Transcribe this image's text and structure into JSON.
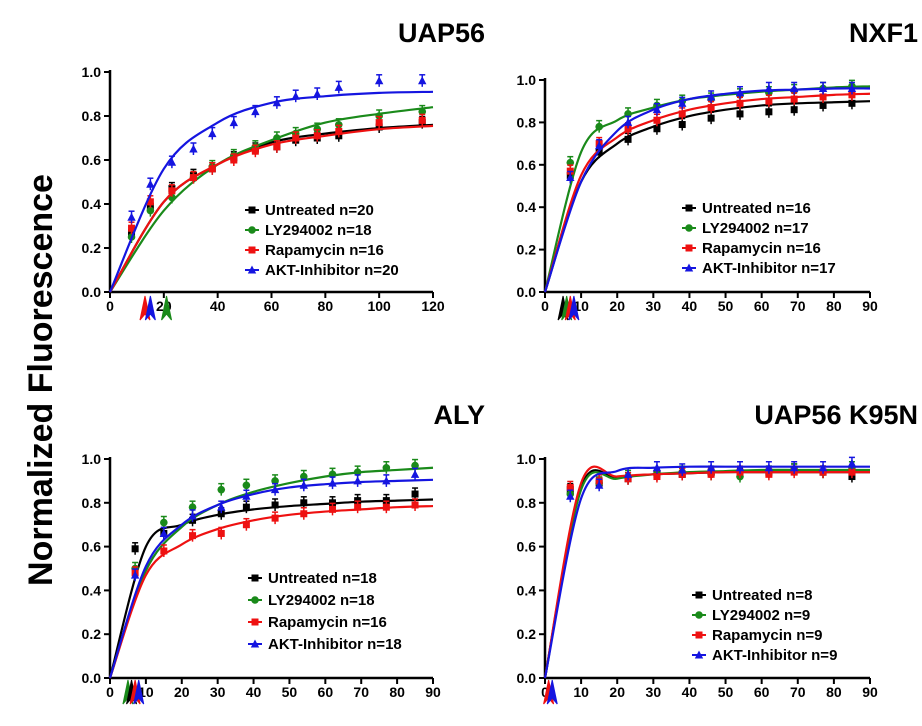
{
  "figure": {
    "ylabel": "Normalized Fluorescence"
  },
  "colors": {
    "Untreated": "#000000",
    "LY294002": "#1a8a1a",
    "Rapamycin": "#ee1111",
    "AKT-Inhibitor": "#1515e0"
  },
  "chart_data": [
    {
      "type": "line",
      "title": "UAP56",
      "xlabel": "",
      "ylabel": "",
      "xlim": [
        0,
        120
      ],
      "ylim": [
        0,
        1.0
      ],
      "xticks": [
        0,
        20,
        40,
        60,
        80,
        100,
        120
      ],
      "yticks": [
        0.0,
        0.2,
        0.4,
        0.6,
        0.8,
        1.0
      ],
      "legend_position": "lower-right",
      "series": [
        {
          "name": "Untreated n=20",
          "key": "Untreated",
          "x": [
            0,
            8,
            15,
            23,
            31,
            38,
            46,
            54,
            62,
            69,
            77,
            85,
            100,
            116
          ],
          "y": [
            0,
            0.27,
            0.39,
            0.47,
            0.53,
            0.56,
            0.61,
            0.65,
            0.66,
            0.69,
            0.7,
            0.71,
            0.75,
            0.77
          ],
          "fit": [
            0,
            0.41,
            0.58,
            0.68,
            0.72,
            0.745,
            0.76
          ]
        },
        {
          "name": "LY294002 n=18",
          "key": "LY294002",
          "x": [
            0,
            8,
            15,
            23,
            31,
            38,
            46,
            54,
            62,
            69,
            77,
            85,
            100,
            116
          ],
          "y": [
            0,
            0.25,
            0.37,
            0.43,
            0.52,
            0.57,
            0.62,
            0.66,
            0.7,
            0.72,
            0.74,
            0.76,
            0.8,
            0.82
          ],
          "fit": [
            0,
            0.37,
            0.58,
            0.69,
            0.77,
            0.81,
            0.84
          ]
        },
        {
          "name": "Rapamycin n=16",
          "key": "Rapamycin",
          "x": [
            0,
            8,
            15,
            23,
            31,
            38,
            46,
            54,
            62,
            69,
            77,
            85,
            100,
            116
          ],
          "y": [
            0,
            0.29,
            0.41,
            0.46,
            0.52,
            0.56,
            0.6,
            0.64,
            0.66,
            0.7,
            0.71,
            0.73,
            0.77,
            0.78
          ],
          "fit": [
            0,
            0.41,
            0.58,
            0.67,
            0.71,
            0.74,
            0.755
          ]
        },
        {
          "name": "AKT-Inhibitor n=20",
          "key": "AKT-Inhibitor",
          "x": [
            0,
            8,
            15,
            23,
            31,
            38,
            46,
            54,
            62,
            69,
            77,
            85,
            100,
            116
          ],
          "y": [
            0,
            0.34,
            0.49,
            0.59,
            0.65,
            0.72,
            0.77,
            0.82,
            0.86,
            0.89,
            0.9,
            0.93,
            0.96,
            0.96
          ],
          "fit": [
            0,
            0.56,
            0.77,
            0.86,
            0.89,
            0.905,
            0.91
          ]
        }
      ],
      "half_times": [
        {
          "series": "Rapamycin",
          "x": 13
        },
        {
          "series": "AKT-Inhibitor",
          "x": 15
        },
        {
          "series": "LY294002",
          "x": 21
        }
      ]
    },
    {
      "type": "line",
      "title": "NXF1",
      "xlabel": "",
      "ylabel": "",
      "xlim": [
        0,
        90
      ],
      "ylim": [
        0,
        1.0
      ],
      "xticks": [
        0,
        10,
        20,
        30,
        40,
        50,
        60,
        70,
        80,
        90
      ],
      "yticks": [
        0.0,
        0.2,
        0.4,
        0.6,
        0.8,
        1.0
      ],
      "legend_position": "lower-right",
      "series": [
        {
          "name": "Untreated n=16",
          "key": "Untreated",
          "x": [
            0,
            7,
            15,
            23,
            31,
            38,
            46,
            54,
            62,
            69,
            77,
            85
          ],
          "y": [
            0,
            0.55,
            0.66,
            0.72,
            0.77,
            0.79,
            0.82,
            0.84,
            0.85,
            0.86,
            0.88,
            0.89
          ],
          "fit": [
            0,
            0.52,
            0.7,
            0.78,
            0.83,
            0.86,
            0.88,
            0.89,
            0.895,
            0.9
          ]
        },
        {
          "name": "LY294002 n=17",
          "key": "LY294002",
          "x": [
            0,
            7,
            15,
            23,
            31,
            38,
            46,
            54,
            62,
            69,
            77,
            85
          ],
          "y": [
            0,
            0.61,
            0.78,
            0.84,
            0.88,
            0.9,
            0.91,
            0.93,
            0.94,
            0.95,
            0.96,
            0.97
          ],
          "fit": [
            0,
            0.66,
            0.81,
            0.87,
            0.91,
            0.93,
            0.945,
            0.955,
            0.965,
            0.97
          ]
        },
        {
          "name": "Rapamycin n=16",
          "key": "Rapamycin",
          "x": [
            0,
            7,
            15,
            23,
            31,
            38,
            46,
            54,
            62,
            69,
            77,
            85
          ],
          "y": [
            0,
            0.57,
            0.7,
            0.77,
            0.81,
            0.84,
            0.87,
            0.89,
            0.9,
            0.91,
            0.92,
            0.93
          ],
          "fit": [
            0,
            0.55,
            0.73,
            0.81,
            0.86,
            0.89,
            0.91,
            0.92,
            0.93,
            0.935
          ]
        },
        {
          "name": "AKT-Inhibitor n=17",
          "key": "AKT-Inhibitor",
          "x": [
            0,
            7,
            15,
            23,
            31,
            38,
            46,
            54,
            62,
            69,
            77,
            85
          ],
          "y": [
            0,
            0.54,
            0.69,
            0.8,
            0.86,
            0.89,
            0.92,
            0.94,
            0.96,
            0.96,
            0.96,
            0.96
          ],
          "fit": [
            0,
            0.52,
            0.76,
            0.86,
            0.91,
            0.935,
            0.95,
            0.955,
            0.96,
            0.96
          ]
        }
      ],
      "half_times": [
        {
          "series": "Untreated",
          "x": 5
        },
        {
          "series": "LY294002",
          "x": 6
        },
        {
          "series": "Rapamycin",
          "x": 7
        },
        {
          "series": "AKT-Inhibitor",
          "x": 8
        }
      ]
    },
    {
      "type": "line",
      "title": "ALY",
      "xlabel": "",
      "ylabel": "",
      "xlim": [
        0,
        90
      ],
      "ylim": [
        0,
        1.0
      ],
      "xticks": [
        0,
        10,
        20,
        30,
        40,
        50,
        60,
        70,
        80,
        90
      ],
      "yticks": [
        0.0,
        0.2,
        0.4,
        0.6,
        0.8,
        1.0
      ],
      "legend_position": "lower-right",
      "series": [
        {
          "name": "Untreated n=18",
          "key": "Untreated",
          "x": [
            0,
            7,
            15,
            23,
            31,
            38,
            46,
            54,
            62,
            69,
            77,
            85
          ],
          "y": [
            0,
            0.59,
            0.66,
            0.72,
            0.75,
            0.78,
            0.79,
            0.8,
            0.8,
            0.81,
            0.81,
            0.84
          ],
          "fit": [
            0,
            0.6,
            0.7,
            0.745,
            0.77,
            0.785,
            0.795,
            0.805,
            0.81,
            0.815
          ]
        },
        {
          "name": "LY294002 n=18",
          "key": "LY294002",
          "x": [
            0,
            7,
            15,
            23,
            31,
            38,
            46,
            54,
            62,
            69,
            77,
            85
          ],
          "y": [
            0,
            0.5,
            0.71,
            0.78,
            0.86,
            0.88,
            0.9,
            0.92,
            0.93,
            0.94,
            0.96,
            0.97
          ],
          "fit": [
            0,
            0.49,
            0.69,
            0.79,
            0.85,
            0.89,
            0.92,
            0.94,
            0.95,
            0.96
          ]
        },
        {
          "name": "Rapamycin n=16",
          "key": "Rapamycin",
          "x": [
            0,
            7,
            15,
            23,
            31,
            38,
            46,
            54,
            62,
            69,
            77,
            85
          ],
          "y": [
            0,
            0.48,
            0.58,
            0.65,
            0.66,
            0.7,
            0.73,
            0.75,
            0.77,
            0.78,
            0.78,
            0.79
          ],
          "fit": [
            0,
            0.47,
            0.61,
            0.68,
            0.72,
            0.745,
            0.76,
            0.77,
            0.78,
            0.785
          ]
        },
        {
          "name": "AKT-Inhibitor n=18",
          "key": "AKT-Inhibitor",
          "x": [
            0,
            7,
            15,
            23,
            31,
            38,
            46,
            54,
            62,
            69,
            77,
            85
          ],
          "y": [
            0,
            0.47,
            0.66,
            0.74,
            0.78,
            0.83,
            0.86,
            0.88,
            0.89,
            0.9,
            0.9,
            0.93
          ],
          "fit": [
            0,
            0.51,
            0.7,
            0.79,
            0.84,
            0.87,
            0.885,
            0.895,
            0.9,
            0.905
          ]
        }
      ],
      "half_times": [
        {
          "series": "LY294002",
          "x": 5
        },
        {
          "series": "Untreated",
          "x": 6
        },
        {
          "series": "Rapamycin",
          "x": 7
        },
        {
          "series": "AKT-Inhibitor",
          "x": 8
        }
      ]
    },
    {
      "type": "line",
      "title": "UAP56 K95N",
      "xlabel": "",
      "ylabel": "",
      "xlim": [
        0,
        90
      ],
      "ylim": [
        0,
        1.0
      ],
      "xticks": [
        0,
        10,
        20,
        30,
        40,
        50,
        60,
        70,
        80,
        90
      ],
      "yticks": [
        0.0,
        0.2,
        0.4,
        0.6,
        0.8,
        1.0
      ],
      "legend_position": "lower-right",
      "series": [
        {
          "name": "Untreated n=8",
          "key": "Untreated",
          "x": [
            0,
            7,
            15,
            23,
            31,
            38,
            46,
            54,
            62,
            69,
            77,
            85
          ],
          "y": [
            0,
            0.86,
            0.89,
            0.91,
            0.93,
            0.93,
            0.94,
            0.93,
            0.94,
            0.95,
            0.94,
            0.92
          ],
          "fit": [
            0,
            0.87,
            0.915,
            0.93,
            0.935,
            0.94,
            0.94,
            0.94,
            0.94,
            0.94
          ]
        },
        {
          "name": "LY294002 n=9",
          "key": "LY294002",
          "x": [
            0,
            7,
            15,
            23,
            31,
            38,
            46,
            54,
            62,
            69,
            77,
            85
          ],
          "y": [
            0,
            0.84,
            0.89,
            0.92,
            0.93,
            0.94,
            0.93,
            0.92,
            0.94,
            0.95,
            0.94,
            0.96
          ],
          "fit": [
            0,
            0.86,
            0.91,
            0.93,
            0.94,
            0.945,
            0.95,
            0.95,
            0.95,
            0.95
          ]
        },
        {
          "name": "Rapamycin n=9",
          "key": "Rapamycin",
          "x": [
            0,
            7,
            15,
            23,
            31,
            38,
            46,
            54,
            62,
            69,
            77,
            85
          ],
          "y": [
            0,
            0.87,
            0.9,
            0.91,
            0.92,
            0.93,
            0.93,
            0.94,
            0.93,
            0.94,
            0.94,
            0.94
          ],
          "fit": [
            0,
            0.89,
            0.92,
            0.93,
            0.935,
            0.94,
            0.94,
            0.94,
            0.94,
            0.94
          ]
        },
        {
          "name": "AKT-Inhibitor n=9",
          "key": "AKT-Inhibitor",
          "x": [
            0,
            7,
            15,
            23,
            31,
            38,
            46,
            54,
            62,
            69,
            77,
            85
          ],
          "y": [
            0,
            0.83,
            0.88,
            0.93,
            0.96,
            0.95,
            0.96,
            0.96,
            0.96,
            0.96,
            0.96,
            0.98
          ],
          "fit": [
            0,
            0.82,
            0.945,
            0.96,
            0.965,
            0.965,
            0.965,
            0.965,
            0.965,
            0.965
          ]
        }
      ],
      "half_times": [
        {
          "series": "Rapamycin",
          "x": 1
        },
        {
          "series": "AKT-Inhibitor",
          "x": 2
        }
      ]
    }
  ]
}
